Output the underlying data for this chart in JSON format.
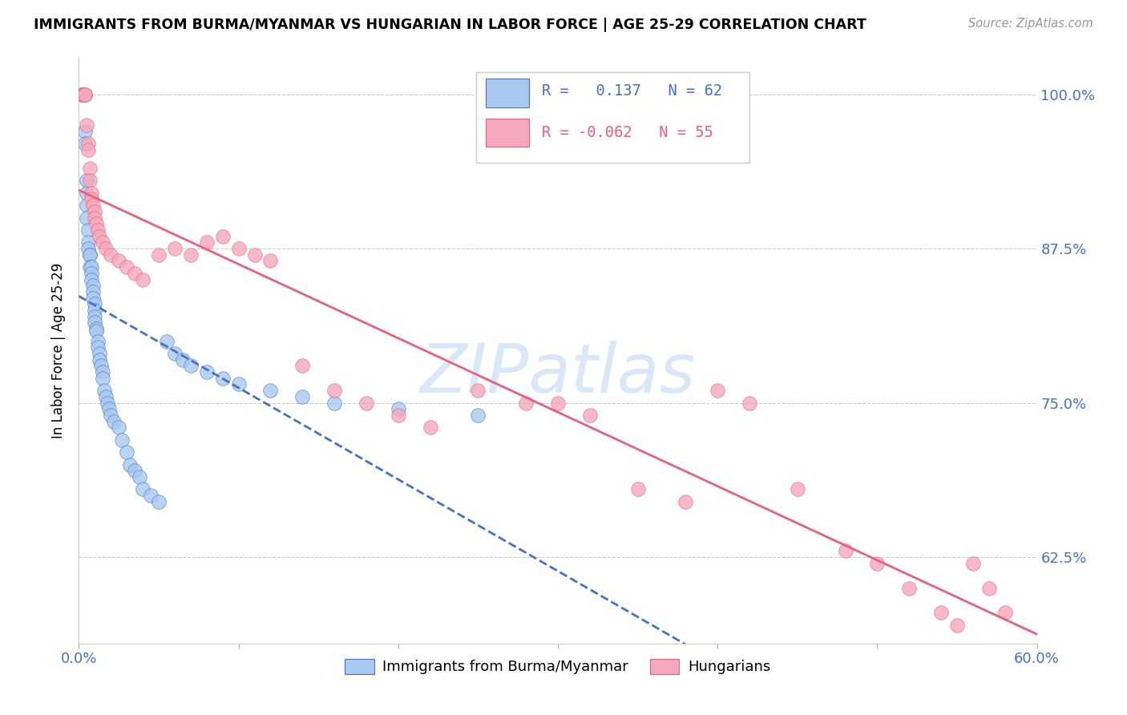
{
  "title": "IMMIGRANTS FROM BURMA/MYANMAR VS HUNGARIAN IN LABOR FORCE | AGE 25-29 CORRELATION CHART",
  "source": "Source: ZipAtlas.com",
  "ylabel": "In Labor Force | Age 25-29",
  "xlim": [
    0.0,
    0.6
  ],
  "ylim": [
    0.555,
    1.03
  ],
  "xticks": [
    0.0,
    0.1,
    0.2,
    0.3,
    0.4,
    0.5,
    0.6
  ],
  "ytick_positions": [
    0.625,
    0.75,
    0.875,
    1.0
  ],
  "ytick_labels": [
    "62.5%",
    "75.0%",
    "87.5%",
    "100.0%"
  ],
  "blue_R": 0.137,
  "blue_N": 62,
  "pink_R": -0.062,
  "pink_N": 55,
  "blue_color": "#A8C8F0",
  "pink_color": "#F5A8BC",
  "blue_line_color": "#4472C4",
  "pink_line_color": "#E8607A",
  "watermark": "ZIPatlas",
  "watermark_color": "#D8E8F8",
  "legend_label_blue": "Immigrants from Burma/Myanmar",
  "legend_label_pink": "Hungarians",
  "blue_scatter_x": [
    0.002,
    0.003,
    0.003,
    0.004,
    0.004,
    0.004,
    0.005,
    0.005,
    0.005,
    0.005,
    0.006,
    0.006,
    0.006,
    0.007,
    0.007,
    0.007,
    0.008,
    0.008,
    0.008,
    0.009,
    0.009,
    0.009,
    0.01,
    0.01,
    0.01,
    0.01,
    0.011,
    0.011,
    0.012,
    0.012,
    0.013,
    0.013,
    0.014,
    0.015,
    0.015,
    0.016,
    0.017,
    0.018,
    0.019,
    0.02,
    0.022,
    0.025,
    0.027,
    0.03,
    0.032,
    0.035,
    0.038,
    0.04,
    0.045,
    0.05,
    0.055,
    0.06,
    0.065,
    0.07,
    0.08,
    0.09,
    0.1,
    0.12,
    0.14,
    0.16,
    0.2,
    0.25
  ],
  "blue_scatter_y": [
    1.0,
    1.0,
    1.0,
    1.0,
    0.97,
    0.96,
    0.93,
    0.92,
    0.91,
    0.9,
    0.89,
    0.88,
    0.875,
    0.87,
    0.87,
    0.86,
    0.86,
    0.855,
    0.85,
    0.845,
    0.84,
    0.835,
    0.83,
    0.825,
    0.82,
    0.815,
    0.81,
    0.808,
    0.8,
    0.795,
    0.79,
    0.785,
    0.78,
    0.775,
    0.77,
    0.76,
    0.755,
    0.75,
    0.745,
    0.74,
    0.735,
    0.73,
    0.72,
    0.71,
    0.7,
    0.695,
    0.69,
    0.68,
    0.675,
    0.67,
    0.8,
    0.79,
    0.785,
    0.78,
    0.775,
    0.77,
    0.765,
    0.76,
    0.755,
    0.75,
    0.745,
    0.74
  ],
  "pink_scatter_x": [
    0.002,
    0.003,
    0.003,
    0.004,
    0.004,
    0.005,
    0.006,
    0.006,
    0.007,
    0.007,
    0.008,
    0.008,
    0.009,
    0.01,
    0.01,
    0.011,
    0.012,
    0.013,
    0.015,
    0.017,
    0.02,
    0.025,
    0.03,
    0.035,
    0.04,
    0.05,
    0.06,
    0.07,
    0.08,
    0.09,
    0.1,
    0.11,
    0.12,
    0.14,
    0.16,
    0.18,
    0.2,
    0.22,
    0.25,
    0.28,
    0.3,
    0.32,
    0.35,
    0.38,
    0.4,
    0.42,
    0.45,
    0.48,
    0.5,
    0.52,
    0.54,
    0.55,
    0.56,
    0.57,
    0.58
  ],
  "pink_scatter_y": [
    1.0,
    1.0,
    1.0,
    1.0,
    1.0,
    0.975,
    0.96,
    0.955,
    0.94,
    0.93,
    0.92,
    0.915,
    0.91,
    0.905,
    0.9,
    0.895,
    0.89,
    0.885,
    0.88,
    0.875,
    0.87,
    0.865,
    0.86,
    0.855,
    0.85,
    0.87,
    0.875,
    0.87,
    0.88,
    0.885,
    0.875,
    0.87,
    0.865,
    0.78,
    0.76,
    0.75,
    0.74,
    0.73,
    0.76,
    0.75,
    0.75,
    0.74,
    0.68,
    0.67,
    0.76,
    0.75,
    0.68,
    0.63,
    0.62,
    0.6,
    0.58,
    0.57,
    0.62,
    0.6,
    0.58
  ]
}
